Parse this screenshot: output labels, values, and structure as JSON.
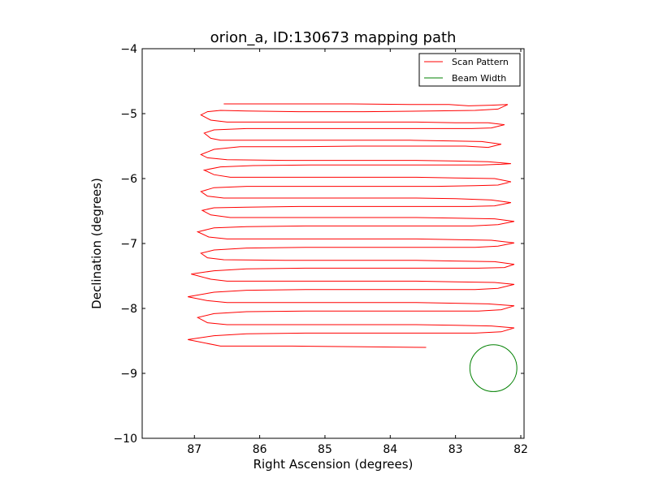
{
  "chart_data": {
    "type": "line",
    "title": "orion_a, ID:130673 mapping path",
    "xlabel": "Right Ascension (degrees)",
    "ylabel": "Declination (degrees)",
    "xlim": [
      87.8,
      81.95
    ],
    "ylim": [
      -10,
      -4
    ],
    "x_inverted": true,
    "xticks": [
      87,
      86,
      85,
      84,
      83,
      82
    ],
    "yticks": [
      -10,
      -9,
      -8,
      -7,
      -6,
      -5,
      -4
    ],
    "xtick_labels": [
      "87",
      "86",
      "85",
      "84",
      "83",
      "82"
    ],
    "ytick_labels": [
      "−10",
      "−9",
      "−8",
      "−7",
      "−6",
      "−5",
      "−4"
    ],
    "grid": false,
    "legend_position": "top-right",
    "series": [
      {
        "name": "Scan Pattern",
        "color": "#ff0000",
        "x": [
          86.55,
          85.6,
          84.6,
          83.7,
          83.1,
          82.8,
          82.45,
          82.2,
          82.35,
          82.7,
          83.4,
          84.4,
          85.4,
          86.2,
          86.6,
          86.8,
          86.9,
          86.75,
          86.5,
          85.7,
          84.7,
          83.6,
          83,
          82.5,
          82.25,
          82.45,
          82.75,
          83.3,
          84.3,
          85.3,
          86.2,
          86.7,
          86.85,
          86.75,
          86.6,
          85.7,
          84.7,
          83.7,
          83.1,
          82.6,
          82.3,
          82.5,
          82.85,
          83.5,
          84.5,
          85.5,
          86.3,
          86.7,
          86.9,
          86.8,
          86.5,
          85.6,
          84.6,
          83.6,
          83,
          82.5,
          82.15,
          82.3,
          82.6,
          83.2,
          84.2,
          85.2,
          86.1,
          86.6,
          86.85,
          86.7,
          86.45,
          85.6,
          84.6,
          83.6,
          83,
          82.4,
          82.15,
          82.35,
          82.7,
          83.3,
          84.3,
          85.3,
          86.2,
          86.7,
          86.9,
          86.8,
          86.55,
          85.6,
          84.6,
          83.6,
          83,
          82.45,
          82.15,
          82.4,
          82.8,
          83.4,
          84.4,
          85.4,
          86.2,
          86.7,
          86.88,
          86.75,
          86.45,
          85.6,
          84.6,
          83.6,
          83,
          82.4,
          82.1,
          82.35,
          82.75,
          83.3,
          84.3,
          85.3,
          86.2,
          86.7,
          86.95,
          86.78,
          86.5,
          85.6,
          84.6,
          83.6,
          83,
          82.45,
          82.1,
          82.35,
          82.7,
          83.3,
          84.3,
          85.3,
          86.2,
          86.7,
          86.9,
          86.8,
          86.55,
          85.6,
          84.6,
          83.6,
          83,
          82.4,
          82.1,
          82.25,
          82.65,
          83.3,
          84.3,
          85.3,
          86.2,
          86.7,
          87.05,
          86.75,
          86.5,
          85.6,
          84.6,
          83.6,
          83,
          82.4,
          82.1,
          82.35,
          82.7,
          83.3,
          84.3,
          85.3,
          86.2,
          86.7,
          87.1,
          86.8,
          86.5,
          85.6,
          84.6,
          83.6,
          83,
          82.5,
          82.1,
          82.3,
          82.65,
          83.3,
          84.3,
          85.3,
          86.2,
          86.7,
          86.95,
          86.8,
          86.5,
          85.6,
          84.6,
          83.6,
          83,
          82.45,
          82.1,
          82.3,
          82.7,
          83.3,
          84.3,
          85.3,
          86.2,
          86.7,
          87.1,
          86.6,
          85.5,
          84.4,
          83.45
        ],
        "y": [
          -4.85,
          -4.85,
          -4.85,
          -4.86,
          -4.86,
          -4.88,
          -4.87,
          -4.86,
          -4.93,
          -4.95,
          -4.96,
          -4.97,
          -4.97,
          -4.96,
          -4.95,
          -4.97,
          -5.02,
          -5.1,
          -5.13,
          -5.13,
          -5.13,
          -5.13,
          -5.14,
          -5.14,
          -5.17,
          -5.22,
          -5.23,
          -5.23,
          -5.23,
          -5.23,
          -5.23,
          -5.25,
          -5.3,
          -5.38,
          -5.41,
          -5.41,
          -5.41,
          -5.41,
          -5.42,
          -5.43,
          -5.47,
          -5.52,
          -5.5,
          -5.5,
          -5.5,
          -5.51,
          -5.51,
          -5.55,
          -5.63,
          -5.68,
          -5.71,
          -5.72,
          -5.72,
          -5.72,
          -5.73,
          -5.74,
          -5.77,
          -5.78,
          -5.79,
          -5.79,
          -5.79,
          -5.79,
          -5.8,
          -5.82,
          -5.87,
          -5.94,
          -5.98,
          -5.98,
          -5.98,
          -5.98,
          -5.99,
          -6,
          -6.05,
          -6.1,
          -6.11,
          -6.12,
          -6.12,
          -6.12,
          -6.12,
          -6.14,
          -6.2,
          -6.27,
          -6.3,
          -6.3,
          -6.3,
          -6.3,
          -6.31,
          -6.33,
          -6.37,
          -6.42,
          -6.43,
          -6.43,
          -6.43,
          -6.43,
          -6.44,
          -6.45,
          -6.49,
          -6.56,
          -6.6,
          -6.6,
          -6.6,
          -6.6,
          -6.61,
          -6.62,
          -6.66,
          -6.71,
          -6.73,
          -6.73,
          -6.73,
          -6.73,
          -6.74,
          -6.76,
          -6.82,
          -6.9,
          -6.93,
          -6.93,
          -6.93,
          -6.93,
          -6.94,
          -6.95,
          -6.99,
          -7.04,
          -7.06,
          -7.06,
          -7.06,
          -7.06,
          -7.07,
          -7.1,
          -7.15,
          -7.22,
          -7.25,
          -7.26,
          -7.26,
          -7.26,
          -7.27,
          -7.28,
          -7.32,
          -7.37,
          -7.38,
          -7.38,
          -7.38,
          -7.38,
          -7.39,
          -7.42,
          -7.47,
          -7.55,
          -7.58,
          -7.58,
          -7.58,
          -7.58,
          -7.59,
          -7.6,
          -7.63,
          -7.69,
          -7.71,
          -7.71,
          -7.71,
          -7.71,
          -7.72,
          -7.75,
          -7.82,
          -7.88,
          -7.91,
          -7.91,
          -7.91,
          -7.91,
          -7.92,
          -7.93,
          -7.96,
          -8.02,
          -8.04,
          -8.04,
          -8.04,
          -8.04,
          -8.05,
          -8.08,
          -8.14,
          -8.22,
          -8.25,
          -8.25,
          -8.25,
          -8.25,
          -8.26,
          -8.27,
          -8.3,
          -8.36,
          -8.38,
          -8.38,
          -8.38,
          -8.38,
          -8.39,
          -8.42,
          -8.48,
          -8.58,
          -8.58,
          -8.59,
          -8.6
        ]
      },
      {
        "name": "Beam Width",
        "color": "#008000",
        "center": [
          82.42,
          -8.92
        ],
        "radius": 0.36
      }
    ],
    "legend": [
      "Scan Pattern",
      "Beam Width"
    ]
  }
}
